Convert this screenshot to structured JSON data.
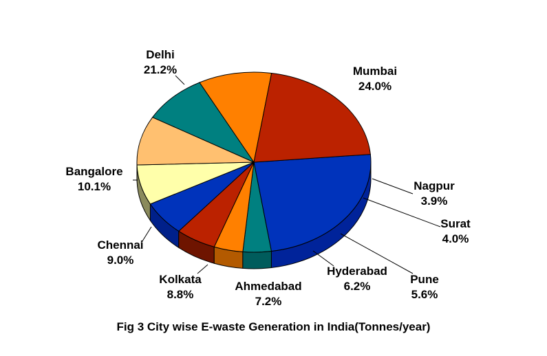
{
  "caption": "Fig 3 City wise E-waste Generation in India(Tonnes/year)",
  "chart_data": {
    "type": "pie",
    "style": "3d",
    "slices": [
      {
        "name": "Mumbai",
        "value": 24.0,
        "label": "24.0%",
        "color": "#0033BB",
        "side_color": "#00239A"
      },
      {
        "name": "Nagpur",
        "value": 3.9,
        "label": "3.9%",
        "color": "#008080",
        "side_color": "#005C5C"
      },
      {
        "name": "Surat",
        "value": 4.0,
        "label": "4.0%",
        "color": "#FF8000",
        "side_color": "#B35A00"
      },
      {
        "name": "Pune",
        "value": 5.6,
        "label": "5.6%",
        "color": "#BB2200",
        "side_color": "#6E1400"
      },
      {
        "name": "Hyderabad",
        "value": 6.2,
        "label": "6.2%",
        "color": "#0033BB",
        "side_color": "#00208A"
      },
      {
        "name": "Ahmedabad",
        "value": 7.2,
        "label": "7.2%",
        "color": "#FFFFAA",
        "side_color": "#8A8A5C"
      },
      {
        "name": "Kolkata",
        "value": 8.8,
        "label": "8.8%",
        "color": "#FFC070",
        "side_color": "#8A6436"
      },
      {
        "name": "Chennai",
        "value": 9.0,
        "label": "9.0%",
        "color": "#008080",
        "side_color": "#004A4A"
      },
      {
        "name": "Bangalore",
        "value": 10.1,
        "label": "10.1%",
        "color": "#FF8000",
        "side_color": "#8A4500"
      },
      {
        "name": "Delhi",
        "value": 21.2,
        "label": "21.2%",
        "color": "#BB2200",
        "side_color": "#7A1600"
      }
    ]
  }
}
